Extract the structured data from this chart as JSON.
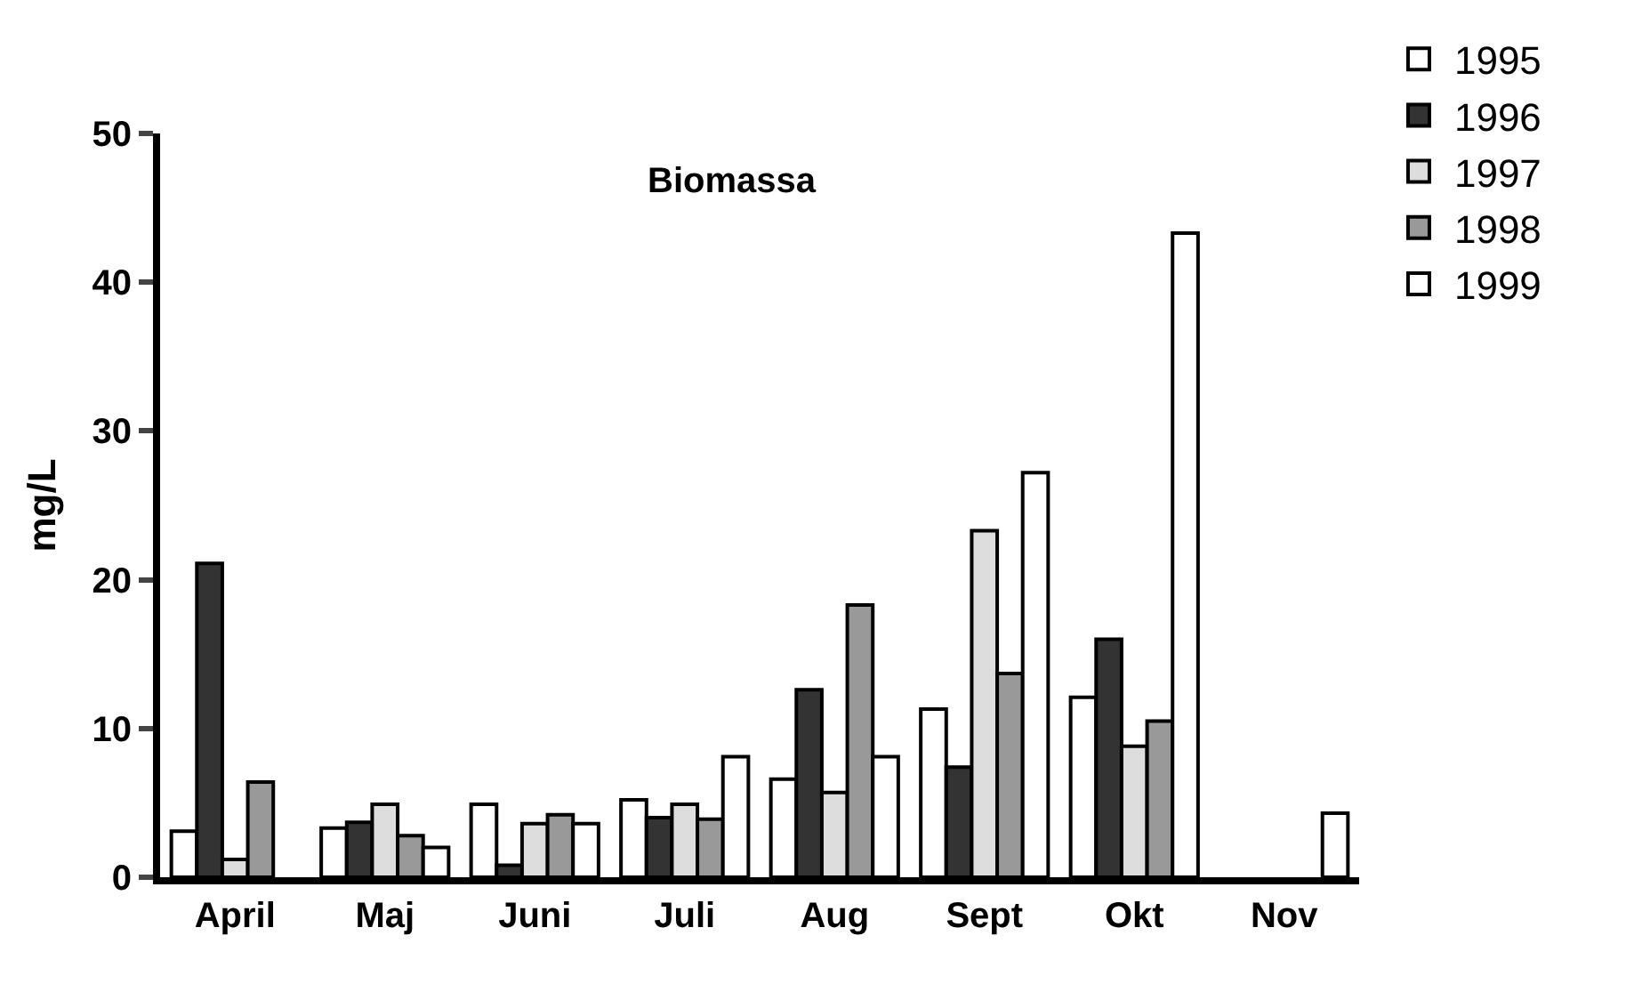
{
  "chart_data": {
    "type": "bar",
    "title": "Biomassa",
    "ylabel": "mg/L",
    "categories": [
      "April",
      "Maj",
      "Juni",
      "Juli",
      "Aug",
      "Sept",
      "Okt",
      "Nov"
    ],
    "series": [
      {
        "name": "1995",
        "color": "#ffffff",
        "values": [
          3.1,
          3.3,
          4.9,
          5.2,
          6.6,
          11.3,
          12.1,
          null
        ]
      },
      {
        "name": "1996",
        "color": "#333333",
        "values": [
          21.1,
          3.7,
          0.8,
          4.0,
          12.6,
          7.4,
          16.0,
          null
        ]
      },
      {
        "name": "1997",
        "color": "#dddddd",
        "values": [
          1.2,
          4.9,
          3.6,
          4.9,
          5.7,
          23.3,
          8.8,
          null
        ]
      },
      {
        "name": "1998",
        "color": "#999999",
        "values": [
          6.4,
          2.8,
          4.2,
          3.9,
          18.3,
          13.7,
          10.5,
          null
        ]
      },
      {
        "name": "1999",
        "color": "#ffffff",
        "values": [
          null,
          2.0,
          3.6,
          8.1,
          8.1,
          27.2,
          43.3,
          4.3
        ]
      }
    ],
    "ylim": [
      0,
      50
    ],
    "yticks": [
      0,
      10,
      20,
      30,
      40,
      50
    ],
    "legend": "top right"
  }
}
